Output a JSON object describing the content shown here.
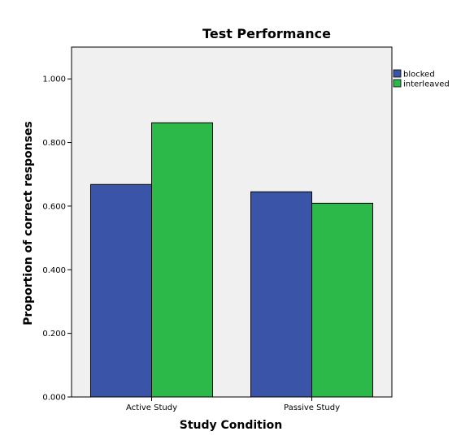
{
  "chart_data": {
    "type": "bar",
    "title": "Test Performance",
    "xlabel": "Study Condition",
    "ylabel": "Proportion of correct responses",
    "categories": [
      "Active Study",
      "Passive Study"
    ],
    "series": [
      {
        "name": "blocked",
        "values": [
          0.668,
          0.645
        ],
        "color": "#3a55a8"
      },
      {
        "name": "interleaved",
        "values": [
          0.862,
          0.609
        ],
        "color": "#2db84a"
      }
    ],
    "ylim": [
      0,
      1.1
    ],
    "yticks": [
      "0.000",
      "0.200",
      "0.400",
      "0.600",
      "0.800",
      "1.000"
    ],
    "grid": false,
    "legend": "top-right",
    "plot_background": "#f0f0f0"
  }
}
